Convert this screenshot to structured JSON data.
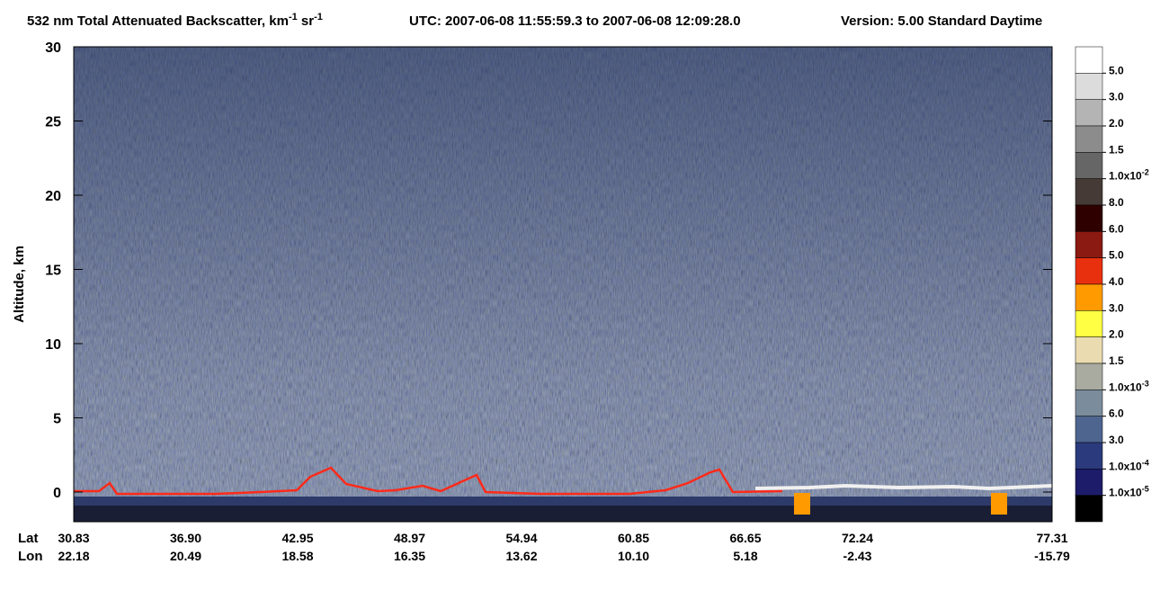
{
  "chart_data": {
    "type": "curtain",
    "title": [
      "532 nm Total Attenuated Backscatter, km",
      "-1",
      " sr",
      "-1"
    ],
    "time_range": "UTC:  2007-06-08 11:55:59.3  to  2007-06-08 12:09:28.0",
    "version": "Version: 5.00  Standard  Daytime",
    "ylabel": "Altitude, km",
    "ylim": [
      -2,
      30
    ],
    "yticks": [
      0,
      5,
      10,
      15,
      20,
      25,
      30
    ],
    "x_row_labels": [
      "Lat",
      "Lon"
    ],
    "lat": [
      "30.83",
      "36.90",
      "42.95",
      "48.97",
      "54.94",
      "60.85",
      "66.65",
      "72.24",
      "77.31"
    ],
    "lon": [
      "22.18",
      "20.49",
      "18.58",
      "16.35",
      "13.62",
      "10.10",
      "5.18",
      "-2.43",
      "-15.79"
    ],
    "colorbar_colors": [
      "#ffffff",
      "#dcdcdc",
      "#b4b4b4",
      "#8c8c8c",
      "#666666",
      "#463a36",
      "#2e0000",
      "#8b1a12",
      "#e8300f",
      "#ff9a00",
      "#ffff44",
      "#eadcb0",
      "#a9aaa0",
      "#7b8c9c",
      "#4e6590",
      "#2a3a7c",
      "#1c1c6a",
      "#000000"
    ],
    "colorbar_labels": [
      "5.0",
      "3.0",
      "2.0",
      "1.5",
      {
        "base": "1.0x10",
        "exp": "-2"
      },
      "8.0",
      "6.0",
      "5.0",
      "4.0",
      "3.0",
      "2.0",
      "1.5",
      {
        "base": "1.0x10",
        "exp": "-3"
      },
      "6.0",
      "3.0",
      {
        "base": "1.0x10",
        "exp": "-4"
      },
      {
        "base": "1.0x10",
        "exp": "-5"
      }
    ]
  }
}
